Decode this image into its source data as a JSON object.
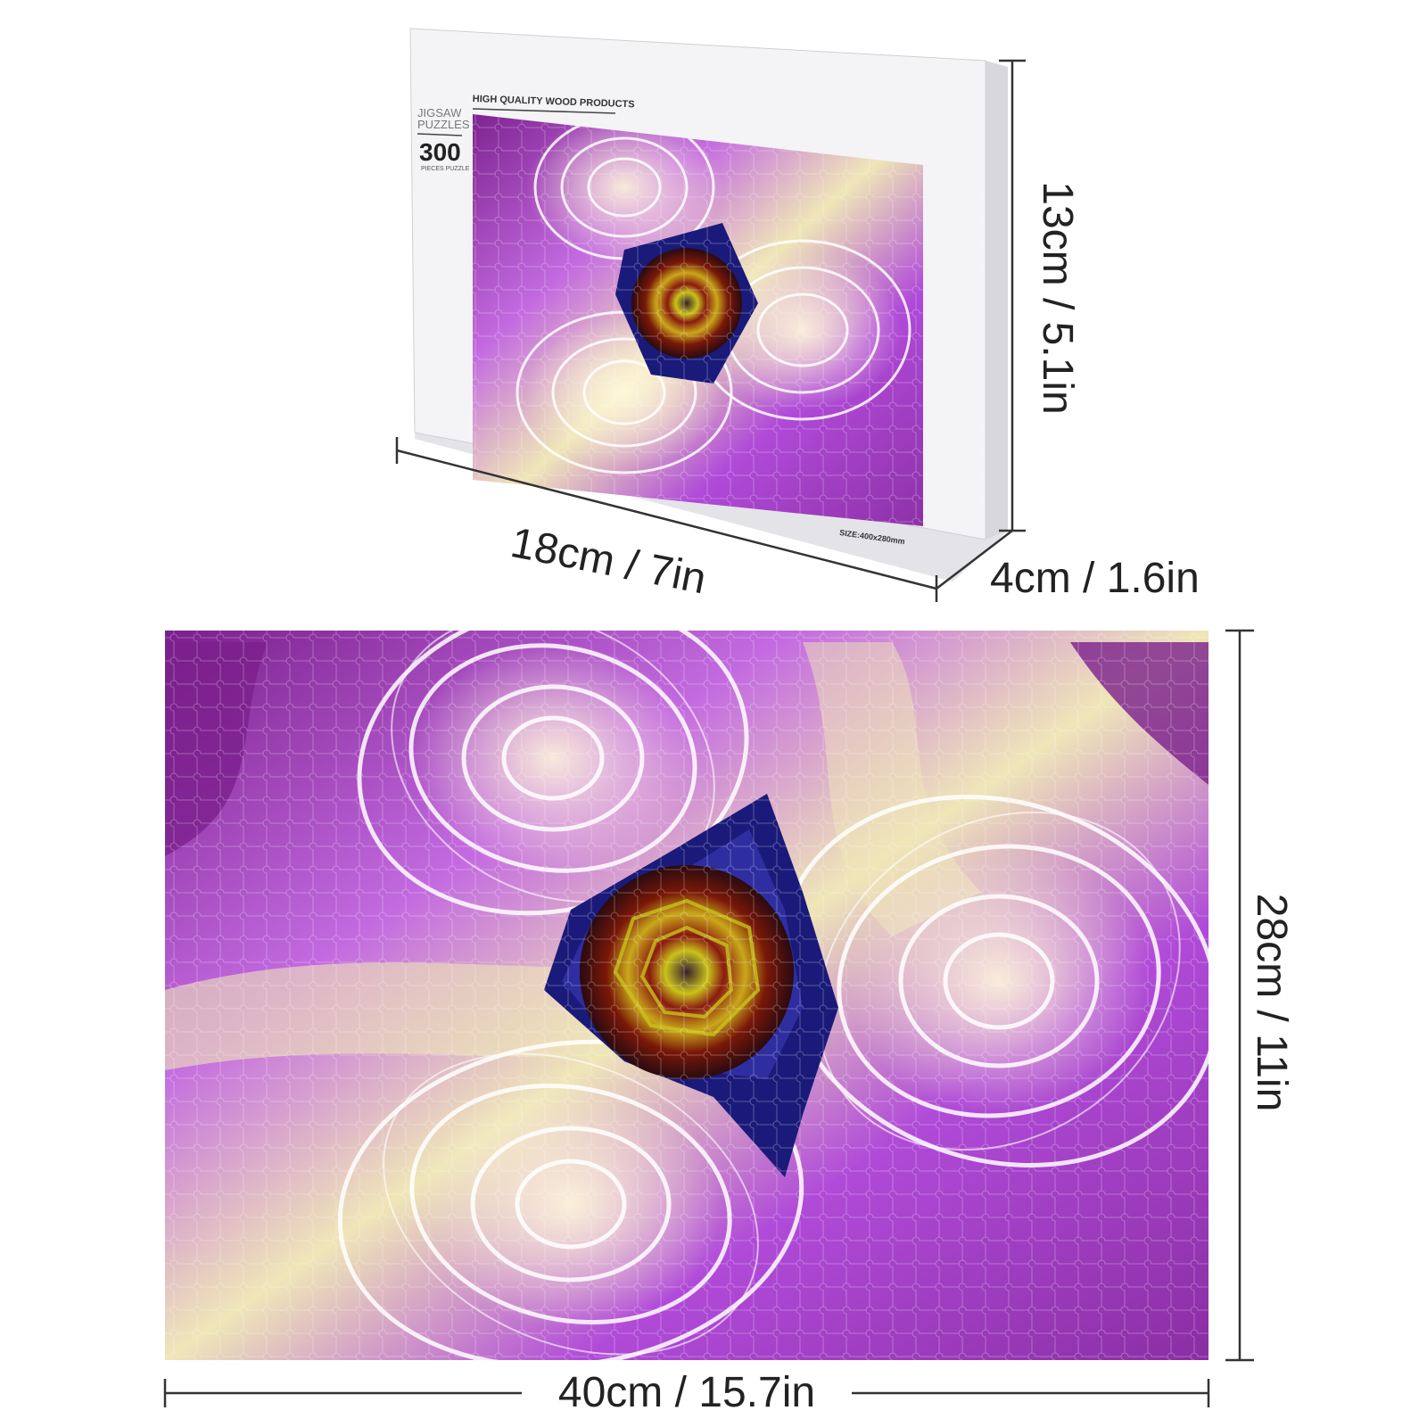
{
  "box": {
    "brand_line": "HIGH QUALITY WOOD PRODUCTS",
    "side_title": "JIGSAW PUZZLES",
    "piece_count": "300",
    "piece_caption": "PIECES PUZZLE",
    "size_note": "SIZE:400x280mm"
  },
  "dimensions": {
    "box_height": "13cm / 5.1in",
    "box_width": "18cm / 7in",
    "box_depth": "4cm / 1.6in",
    "puzzle_height": "28cm / 11in",
    "puzzle_width": "40cm / 15.7in"
  },
  "colors": {
    "purple_deep": "#7a1f8c",
    "purple": "#b04ad8",
    "lavender": "#d9a8f0",
    "cream": "#efe6b8",
    "rose_red": "#8a1a10",
    "rose_yellow": "#c9c21a",
    "navy": "#1a1a7a"
  }
}
